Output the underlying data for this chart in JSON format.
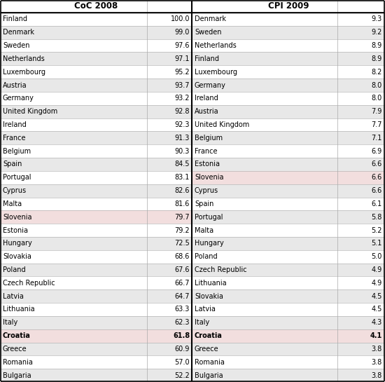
{
  "coc_countries": [
    "Finland",
    "Denmark",
    "Sweden",
    "Netherlands",
    "Luxembourg",
    "Austria",
    "Germany",
    "United Kingdom",
    "Ireland",
    "France",
    "Belgium",
    "Spain",
    "Portugal",
    "Cyprus",
    "Malta",
    "Slovenia",
    "Estonia",
    "Hungary",
    "Slovakia",
    "Poland",
    "Czech Republic",
    "Latvia",
    "Lithuania",
    "Italy",
    "Croatia",
    "Greece",
    "Romania",
    "Bulgaria"
  ],
  "coc_values": [
    100.0,
    99.0,
    97.6,
    97.1,
    95.2,
    93.7,
    93.2,
    92.8,
    92.3,
    91.3,
    90.3,
    84.5,
    83.1,
    82.6,
    81.6,
    79.7,
    79.2,
    72.5,
    68.6,
    67.6,
    66.7,
    64.7,
    63.3,
    62.3,
    61.8,
    60.9,
    57.0,
    52.2
  ],
  "cpi_countries": [
    "Denmark",
    "Sweden",
    "Netherlands",
    "Finland",
    "Luxembourg",
    "Germany",
    "Ireland",
    "Austria",
    "United Kingdom",
    "Belgium",
    "France",
    "Estonia",
    "Slovenia",
    "Cyprus",
    "Spain",
    "Portugal",
    "Malta",
    "Hungary",
    "Poland",
    "Czech Republic",
    "Lithuania",
    "Slovakia",
    "Latvia",
    "Italy",
    "Croatia",
    "Greece",
    "Romania",
    "Bulgaria"
  ],
  "cpi_values": [
    9.3,
    9.2,
    8.9,
    8.9,
    8.2,
    8.0,
    8.0,
    7.9,
    7.7,
    7.1,
    6.9,
    6.6,
    6.6,
    6.6,
    6.1,
    5.8,
    5.2,
    5.1,
    5.0,
    4.9,
    4.9,
    4.5,
    4.5,
    4.3,
    4.1,
    3.8,
    3.8,
    3.8
  ],
  "coc_highlight_row": 15,
  "cpi_highlight_row": 12,
  "croatia_row_coc": 24,
  "croatia_row_cpi": 24,
  "highlight_color": "#f2dede",
  "croatia_highlight_color": "#f2dede",
  "alt_row_color": "#e8e8e8",
  "border_color": "#000000",
  "text_color": "#000000"
}
